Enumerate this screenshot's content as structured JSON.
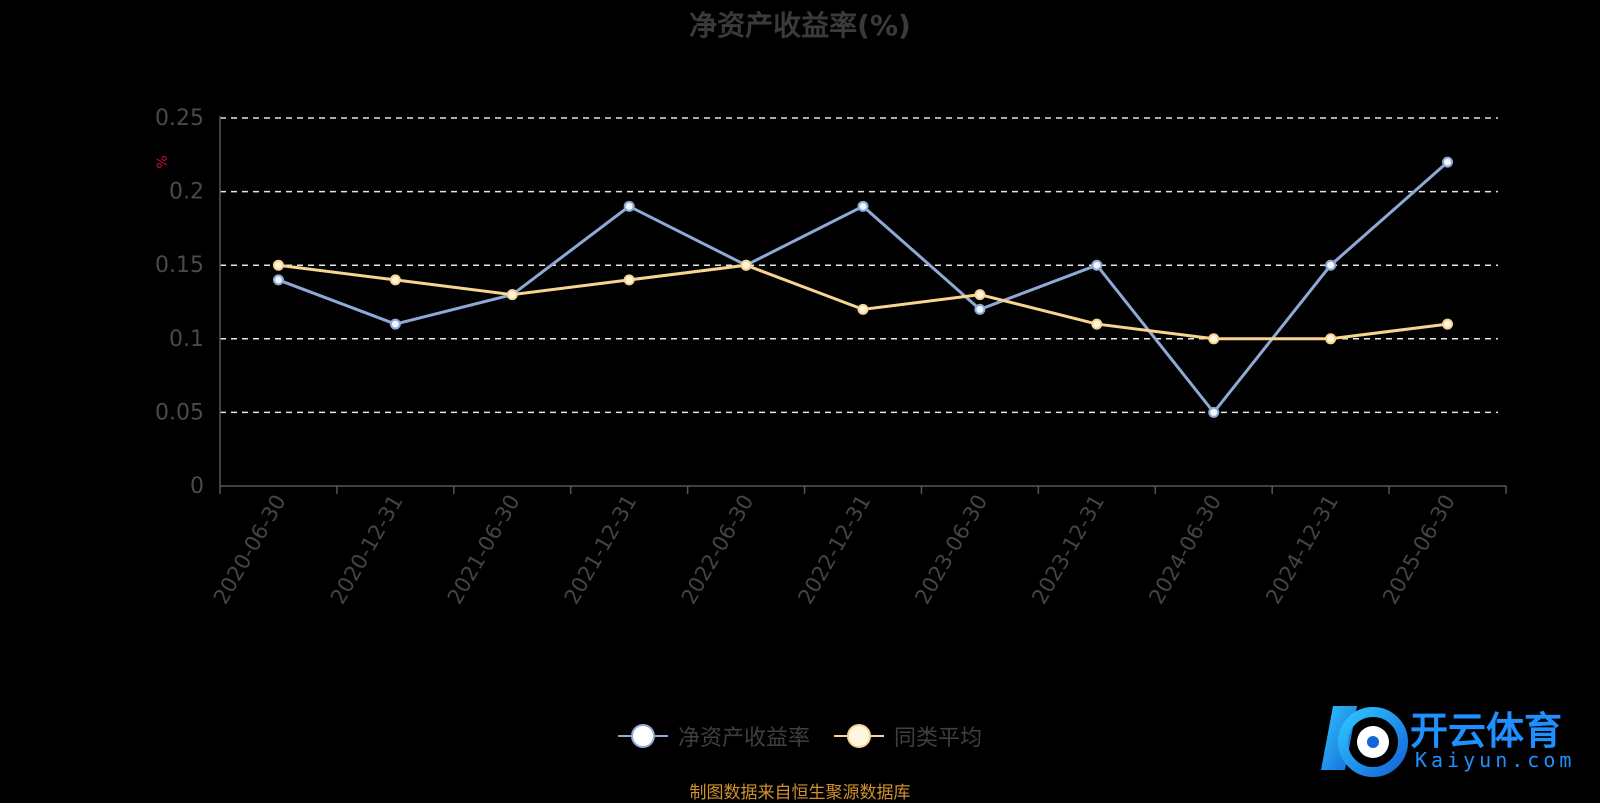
{
  "chart_data": {
    "type": "line",
    "title": "净资产收益率(%)",
    "ylabel": "%",
    "ylim": [
      0,
      0.25
    ],
    "yticks": [
      "0",
      "0.05",
      "0.1",
      "0.15",
      "0.2",
      "0.25"
    ],
    "categories": [
      "2020-06-30",
      "2020-12-31",
      "2021-06-30",
      "2021-12-31",
      "2022-06-30",
      "2022-12-31",
      "2023-06-30",
      "2023-12-31",
      "2024-06-30",
      "2024-12-31",
      "2025-06-30"
    ],
    "series": [
      {
        "name": "净资产收益率",
        "color": "#8fa9d6",
        "values": [
          0.14,
          0.11,
          0.13,
          0.19,
          0.15,
          0.19,
          0.12,
          0.15,
          0.05,
          0.15,
          0.22
        ]
      },
      {
        "name": "同类平均",
        "color": "#f7d48f",
        "values": [
          0.15,
          0.14,
          0.13,
          0.14,
          0.15,
          0.12,
          0.13,
          0.11,
          0.1,
          0.1,
          0.11
        ]
      }
    ],
    "grid": true,
    "legend_position": "bottom"
  },
  "footer_note": "制图数据来自恒生聚源数据库",
  "watermark": {
    "brand": "开云体育",
    "domain": "Kaiyun.com"
  }
}
